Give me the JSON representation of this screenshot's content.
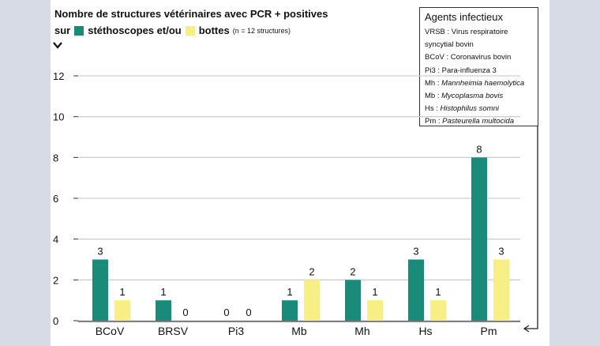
{
  "header": {
    "title_line1": "Nombre de structures vétérinaires avec PCR + positives",
    "title_prefix": "sur",
    "series1_label": "stéthoscopes et/ou",
    "series2_label": "bottes",
    "note": "(n = 12 structures)"
  },
  "legend": {
    "title": "Agents infectieux",
    "items": [
      {
        "code": "VRSB : ",
        "name": "Virus respiratoire",
        "italic": false
      },
      {
        "code": "",
        "name": "syncytial bovin",
        "italic": false
      },
      {
        "code": "BCoV : ",
        "name": "Coronavirus bovin",
        "italic": false
      },
      {
        "code": "Pi3 : ",
        "name": "Para-influenza 3",
        "italic": false
      },
      {
        "code": "Mh : ",
        "name": "Mannheimia haemolytica",
        "italic": true
      },
      {
        "code": "Mb : ",
        "name": "Mycoplasma bovis",
        "italic": true
      },
      {
        "code": "Hs : ",
        "name": "Histophilus somni",
        "italic": true
      },
      {
        "code": "Pm : ",
        "name": "Pasteurella multocida",
        "italic": true
      }
    ]
  },
  "chart_data": {
    "type": "bar",
    "categories": [
      "BCoV",
      "BRSV",
      "Pi3",
      "Mb",
      "Mh",
      "Hs",
      "Pm"
    ],
    "series": [
      {
        "name": "stéthoscopes et/ou",
        "values": [
          3,
          1,
          0,
          1,
          2,
          3,
          8
        ],
        "color": "#1a8a7a"
      },
      {
        "name": "bottes",
        "values": [
          1,
          0,
          0,
          2,
          1,
          1,
          3
        ],
        "color": "#f7ef85"
      }
    ],
    "yticks": [
      0,
      2,
      4,
      6,
      8,
      10,
      12
    ],
    "ylim": [
      0,
      12
    ],
    "grid": true
  }
}
